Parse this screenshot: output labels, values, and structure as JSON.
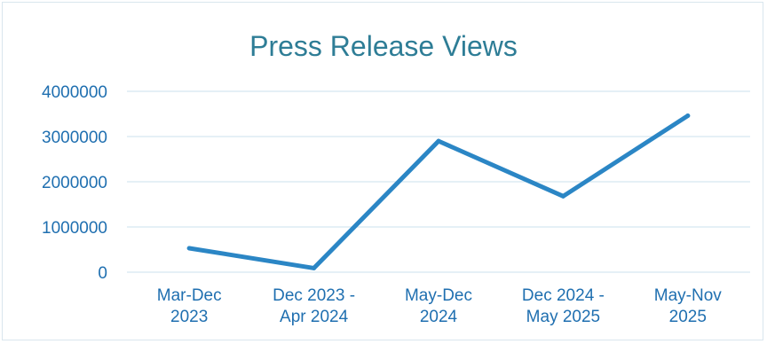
{
  "chart_data": {
    "type": "line",
    "title": "Press Release Views",
    "xlabel": "",
    "ylabel": "",
    "categories": [
      [
        "Mar-Dec",
        "2023"
      ],
      [
        "Dec 2023 -",
        "Apr 2024"
      ],
      [
        "May-Dec",
        "2024"
      ],
      [
        "Dec 2024 -",
        "May 2025"
      ],
      [
        "May-Nov",
        "2025"
      ]
    ],
    "series": [
      {
        "values": [
          530000,
          90000,
          2900000,
          1680000,
          3460000
        ]
      }
    ],
    "ylim": [
      0,
      4000000
    ],
    "yticks": [
      "0",
      "1000000",
      "2000000",
      "3000000",
      "4000000"
    ],
    "grid": true,
    "legend": "none",
    "colors": {
      "series": "#2b86c5",
      "grid": "#d5e8f1",
      "tick_text": "#1f6fb0",
      "title": "#2e7d96"
    }
  }
}
